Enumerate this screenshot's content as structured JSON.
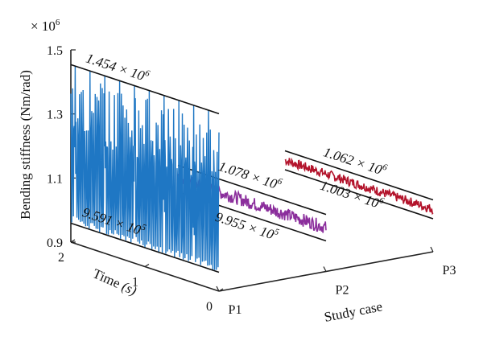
{
  "chart_data": {
    "type": "line",
    "multiplier": "× 10",
    "multiplier_exponent": "6",
    "ylabel": "Bending stiffness (Nm/rad)",
    "xlabel": "Study case",
    "zlabel": "Time",
    "zlabel_unit": "(s)",
    "y_ticks": [
      "1.5",
      "1.3",
      "1.1",
      "0.9"
    ],
    "y_tick_values": [
      1.5,
      1.3,
      1.1,
      0.9
    ],
    "time_ticks": [
      "2",
      "1",
      "0"
    ],
    "time_tick_values": [
      2,
      1,
      0
    ],
    "case_ticks": [
      "P1",
      "P2",
      "P3"
    ],
    "ylim": [
      0.9,
      1.5
    ],
    "time_range": [
      0,
      2
    ],
    "series": [
      {
        "name": "P1",
        "color": "#1f77c4",
        "max": 1.454,
        "min": 0.9591,
        "max_label": "1.454 × 10",
        "max_label_exp": "6",
        "min_label": "9.591 × 10",
        "min_label_exp": "5"
      },
      {
        "name": "P2",
        "color": "#8b2e9c",
        "max": 1.078,
        "min": 0.9955,
        "max_label": "1.078 × 10",
        "max_label_exp": "6",
        "min_label": "9.955 × 10",
        "min_label_exp": "5"
      },
      {
        "name": "P3",
        "color": "#b3132b",
        "max": 1.062,
        "min": 1.003,
        "max_label": "1.062 × 10",
        "max_label_exp": "6",
        "min_label": "1.003 × 10",
        "min_label_exp": "6"
      }
    ]
  }
}
